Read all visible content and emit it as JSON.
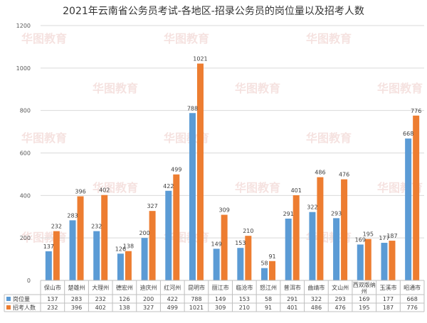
{
  "chart_data": {
    "type": "bar",
    "title": "2021年云南省公务员考试-各地区-招录公务员的岗位量以及招考人数",
    "categories": [
      "保山市",
      "楚雄州",
      "大理州",
      "德宏州",
      "迪庆州",
      "红河州",
      "昆明市",
      "丽江市",
      "临沧市",
      "怒江州",
      "普洱市",
      "曲靖市",
      "文山州",
      "西双版纳州",
      "玉溪市",
      "昭通市"
    ],
    "series": [
      {
        "name": "岗位量",
        "color": "#5b9bd5",
        "values": [
          137,
          283,
          232,
          126,
          200,
          422,
          788,
          149,
          153,
          58,
          291,
          322,
          293,
          169,
          177,
          668
        ]
      },
      {
        "name": "招考人数",
        "color": "#ed7d31",
        "values": [
          232,
          396,
          402,
          138,
          327,
          499,
          1021,
          309,
          210,
          91,
          401,
          486,
          476,
          195,
          187,
          776
        ]
      }
    ],
    "ylim": [
      0,
      1200
    ],
    "yticks": [
      0,
      200,
      400,
      600,
      800,
      1000,
      1200
    ],
    "grid": true,
    "legend": "data table below chart"
  },
  "watermark": {
    "text": "华图教育"
  }
}
